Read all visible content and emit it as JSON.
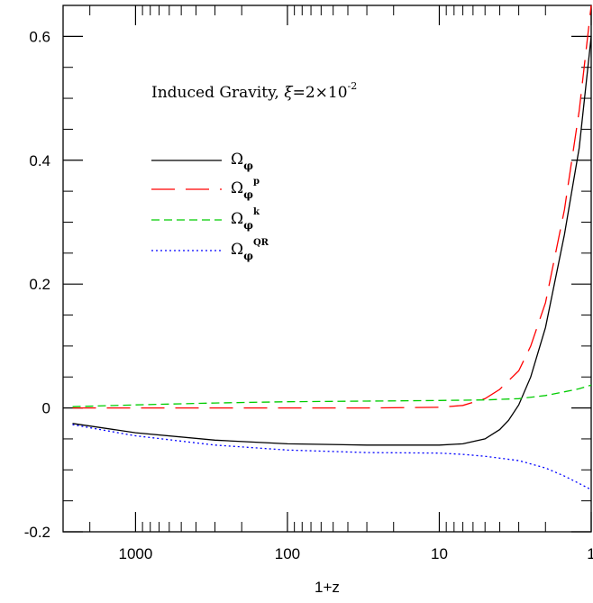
{
  "chart_data": {
    "type": "line",
    "title": "",
    "annotation": {
      "prefix": "Induced Gravity, ",
      "xi": "ξ",
      "equals": "=2×10",
      "exponent": "-2"
    },
    "xlabel": "1+z",
    "ylabel": "",
    "x_scale": "log",
    "x_reversed": true,
    "xlim": [
      3000,
      1
    ],
    "ylim": [
      -0.2,
      0.65
    ],
    "x_ticks": [
      {
        "value": 1000,
        "label": "1000"
      },
      {
        "value": 100,
        "label": "100"
      },
      {
        "value": 10,
        "label": "10"
      },
      {
        "value": 1,
        "label": "1"
      }
    ],
    "y_ticks": [
      {
        "value": -0.2,
        "label": "-0.2"
      },
      {
        "value": 0,
        "label": "0"
      },
      {
        "value": 0.2,
        "label": "0.2"
      },
      {
        "value": 0.4,
        "label": "0.4"
      },
      {
        "value": 0.6,
        "label": "0.6"
      }
    ],
    "grid": false,
    "legend_position": "upper-left",
    "series": [
      {
        "name": "Ω",
        "sub": "φ",
        "sup": "",
        "color": "#000000",
        "style": "solid",
        "points": [
          [
            2600,
            -0.025
          ],
          [
            1000,
            -0.04
          ],
          [
            300,
            -0.052
          ],
          [
            100,
            -0.058
          ],
          [
            30,
            -0.06
          ],
          [
            10,
            -0.06
          ],
          [
            7,
            -0.058
          ],
          [
            5,
            -0.05
          ],
          [
            4,
            -0.035
          ],
          [
            3.5,
            -0.02
          ],
          [
            3,
            0.005
          ],
          [
            2.5,
            0.05
          ],
          [
            2,
            0.13
          ],
          [
            1.5,
            0.28
          ],
          [
            1.2,
            0.42
          ],
          [
            1,
            0.6
          ]
        ]
      },
      {
        "name": "Ω",
        "sub": "φ",
        "sup": "p",
        "color": "#ff0000",
        "style": "long-dash",
        "points": [
          [
            2600,
            0.0
          ],
          [
            1000,
            0.0
          ],
          [
            300,
            0.0
          ],
          [
            100,
            0.0
          ],
          [
            30,
            0.0
          ],
          [
            10,
            0.001
          ],
          [
            7,
            0.004
          ],
          [
            5,
            0.015
          ],
          [
            4,
            0.03
          ],
          [
            3,
            0.06
          ],
          [
            2.5,
            0.1
          ],
          [
            2,
            0.17
          ],
          [
            1.5,
            0.32
          ],
          [
            1.2,
            0.48
          ],
          [
            1,
            0.65
          ]
        ]
      },
      {
        "name": "Ω",
        "sub": "φ",
        "sup": "k",
        "color": "#00cc00",
        "style": "dashed",
        "points": [
          [
            2600,
            0.002
          ],
          [
            1000,
            0.005
          ],
          [
            300,
            0.008
          ],
          [
            100,
            0.01
          ],
          [
            30,
            0.011
          ],
          [
            10,
            0.012
          ],
          [
            5,
            0.013
          ],
          [
            3,
            0.015
          ],
          [
            2,
            0.02
          ],
          [
            1.5,
            0.026
          ],
          [
            1.2,
            0.031
          ],
          [
            1,
            0.037
          ]
        ]
      },
      {
        "name": "Ω",
        "sub": "φ",
        "sup": "QR",
        "color": "#0000ff",
        "style": "dotted",
        "points": [
          [
            2600,
            -0.027
          ],
          [
            1000,
            -0.045
          ],
          [
            300,
            -0.06
          ],
          [
            100,
            -0.068
          ],
          [
            30,
            -0.072
          ],
          [
            10,
            -0.073
          ],
          [
            7,
            -0.075
          ],
          [
            5,
            -0.078
          ],
          [
            3,
            -0.085
          ],
          [
            2,
            -0.097
          ],
          [
            1.5,
            -0.11
          ],
          [
            1.2,
            -0.122
          ],
          [
            1,
            -0.132
          ]
        ]
      }
    ]
  }
}
